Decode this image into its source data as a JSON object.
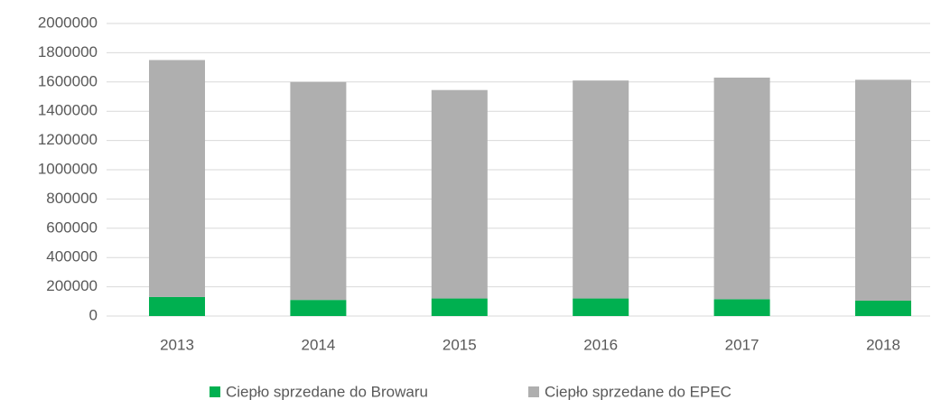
{
  "chart_data": {
    "type": "stacked_bar",
    "categories": [
      "2013",
      "2014",
      "2015",
      "2016",
      "2017",
      "2018"
    ],
    "series": [
      {
        "name": "Ciepło sprzedane do Browaru",
        "color": "#00b050",
        "values": [
          130000,
          110000,
          120000,
          120000,
          115000,
          105000
        ]
      },
      {
        "name": "Ciepło sprzedane do EPEC",
        "color": "#afafaf",
        "values": [
          1620000,
          1490000,
          1425000,
          1490000,
          1515000,
          1510000
        ]
      }
    ],
    "ylim": [
      0,
      2000000
    ],
    "yticks": [
      0,
      200000,
      400000,
      600000,
      800000,
      1000000,
      1200000,
      1400000,
      1600000,
      1800000,
      2000000
    ],
    "grid": true,
    "legend": "bottom"
  }
}
